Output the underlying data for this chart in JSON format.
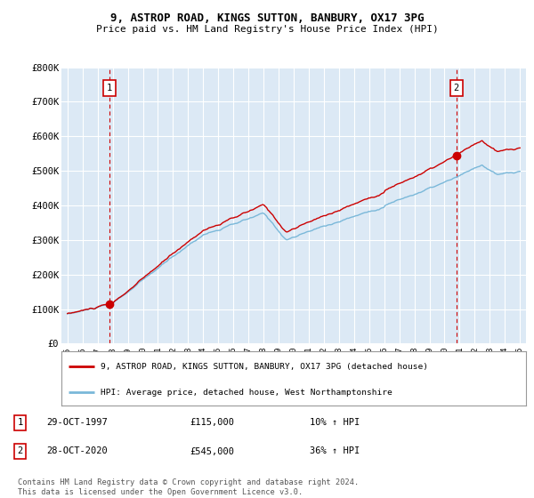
{
  "title": "9, ASTROP ROAD, KINGS SUTTON, BANBURY, OX17 3PG",
  "subtitle": "Price paid vs. HM Land Registry's House Price Index (HPI)",
  "sale1_date": "29-OCT-1997",
  "sale1_price": 115000,
  "sale1_label": "1",
  "sale1_pct": "10% ↑ HPI",
  "sale2_date": "28-OCT-2020",
  "sale2_price": 545000,
  "sale2_label": "2",
  "sale2_pct": "36% ↑ HPI",
  "legend_line1": "9, ASTROP ROAD, KINGS SUTTON, BANBURY, OX17 3PG (detached house)",
  "legend_line2": "HPI: Average price, detached house, West Northamptonshire",
  "footer": "Contains HM Land Registry data © Crown copyright and database right 2024.\nThis data is licensed under the Open Government Licence v3.0.",
  "hpi_color": "#7ab8d9",
  "price_color": "#cc0000",
  "marker_color": "#cc0000",
  "vline_color": "#cc0000",
  "plot_bg": "#dce9f5",
  "grid_color": "#ffffff",
  "ylim": [
    0,
    800000
  ],
  "yticks": [
    0,
    100000,
    200000,
    300000,
    400000,
    500000,
    600000,
    700000,
    800000
  ],
  "ytick_labels": [
    "£0",
    "£100K",
    "£200K",
    "£300K",
    "£400K",
    "£500K",
    "£600K",
    "£700K",
    "£800K"
  ],
  "sale1_year": 1997.79,
  "sale2_year": 2020.79
}
